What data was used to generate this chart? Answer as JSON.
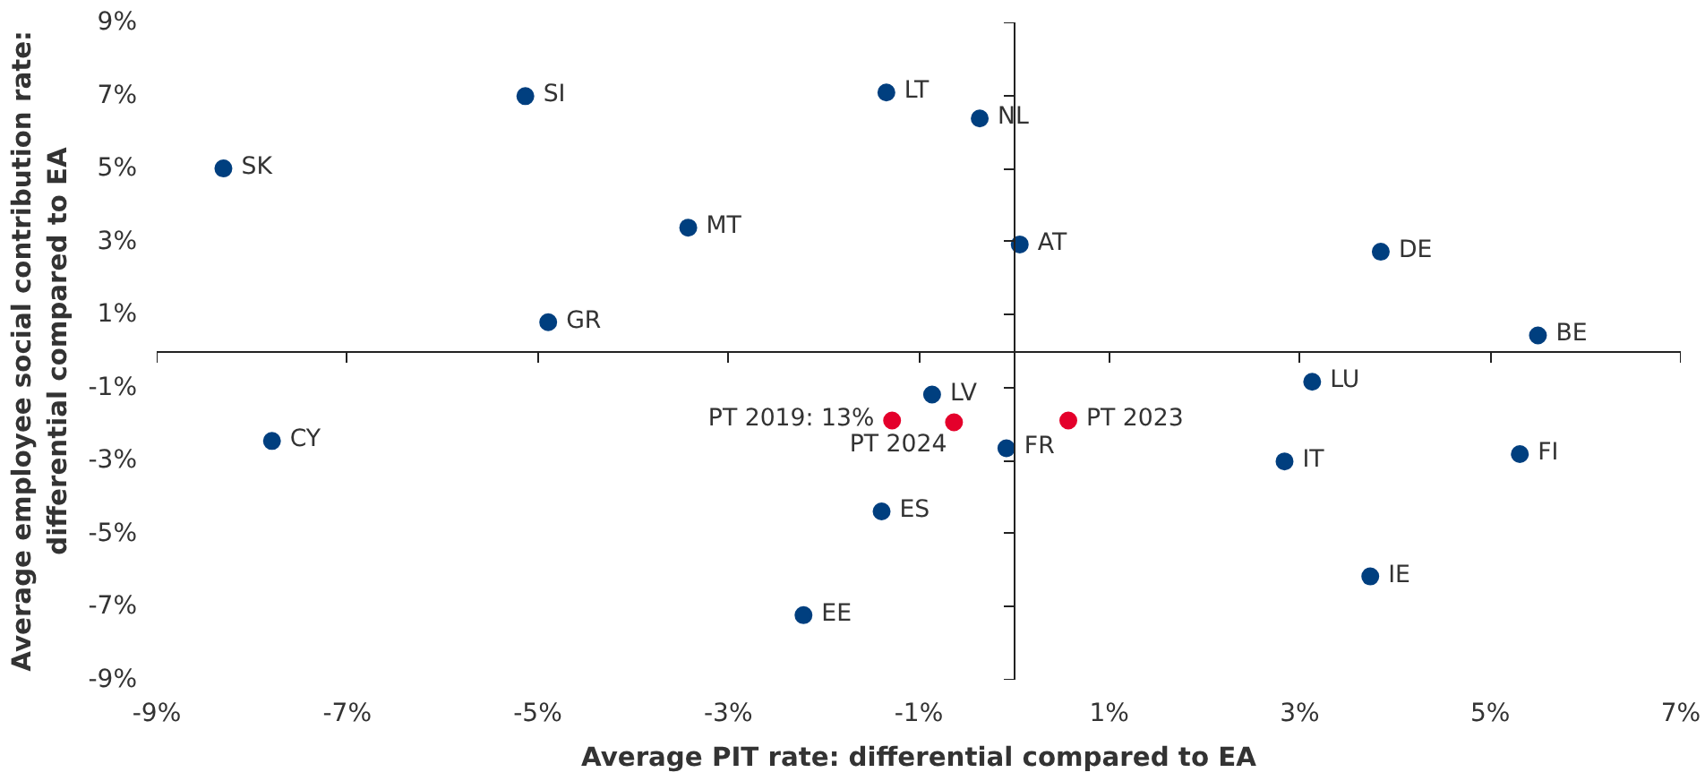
{
  "chart_data": {
    "type": "scatter",
    "xlabel": "Average PIT rate: differential compared to EA",
    "ylabel": "Average employee social contribution rate:\ndifferential compared to EA",
    "xlim": [
      -9,
      7
    ],
    "ylim": [
      -9,
      9
    ],
    "xticks": [
      {
        "value": -9,
        "label": "-9%"
      },
      {
        "value": -7,
        "label": "-7%"
      },
      {
        "value": -5,
        "label": "-5%"
      },
      {
        "value": -3,
        "label": "-3%"
      },
      {
        "value": -1,
        "label": "-1%"
      },
      {
        "value": 1,
        "label": "1%"
      },
      {
        "value": 3,
        "label": "3%"
      },
      {
        "value": 5,
        "label": "5%"
      },
      {
        "value": 7,
        "label": "7%"
      }
    ],
    "yticks": [
      {
        "value": -9,
        "label": "-9%"
      },
      {
        "value": -7,
        "label": "-7%"
      },
      {
        "value": -5,
        "label": "-5%"
      },
      {
        "value": -3,
        "label": "-3%"
      },
      {
        "value": -1,
        "label": "-1%"
      },
      {
        "value": 1,
        "label": "1%"
      },
      {
        "value": 3,
        "label": "3%"
      },
      {
        "value": 5,
        "label": "5%"
      },
      {
        "value": 7,
        "label": "7%"
      },
      {
        "value": 9,
        "label": "9%"
      }
    ],
    "grid": false,
    "marker": "circle",
    "series": [
      {
        "color": "#003f7f",
        "x": [
          -8.3,
          -5.13,
          -1.34,
          -0.36,
          -3.42,
          0.06,
          3.85,
          -4.89,
          5.5,
          3.13,
          -0.86,
          -0.08,
          -7.79,
          2.84,
          5.31,
          -1.39,
          3.74,
          -2.21
        ],
        "values": [
          5.0,
          6.98,
          7.08,
          6.37,
          3.38,
          2.92,
          2.72,
          0.79,
          0.43,
          -0.84,
          -1.19,
          -2.66,
          -2.46,
          -3.02,
          -2.82,
          -4.39,
          -6.17,
          -7.23
        ]
      },
      {
        "color": "#e4002b",
        "x": [
          -1.28,
          -0.63,
          0.57
        ],
        "values": [
          -1.9,
          -1.95,
          -1.9
        ]
      }
    ],
    "annotations": [
      {
        "text": "SK",
        "x": -8.3,
        "y": 5.0
      },
      {
        "text": "SI",
        "x": -5.13,
        "y": 6.98
      },
      {
        "text": "LT",
        "x": -1.34,
        "y": 7.08
      },
      {
        "text": "NL",
        "x": -0.36,
        "y": 6.37
      },
      {
        "text": "MT",
        "x": -3.42,
        "y": 3.38
      },
      {
        "text": "AT",
        "x": 0.06,
        "y": 2.92
      },
      {
        "text": "DE",
        "x": 3.85,
        "y": 2.72
      },
      {
        "text": "GR",
        "x": -4.89,
        "y": 0.79
      },
      {
        "text": "BE",
        "x": 5.5,
        "y": 0.43
      },
      {
        "text": "LU",
        "x": 3.13,
        "y": -0.84
      },
      {
        "text": "LV",
        "x": -0.86,
        "y": -1.19
      },
      {
        "text": "FR",
        "x": -0.08,
        "y": -2.66
      },
      {
        "text": "CY",
        "x": -7.79,
        "y": -2.46
      },
      {
        "text": "IT",
        "x": 2.84,
        "y": -3.02
      },
      {
        "text": "FI",
        "x": 5.31,
        "y": -2.82
      },
      {
        "text": "ES",
        "x": -1.39,
        "y": -4.39
      },
      {
        "text": "IE",
        "x": 3.74,
        "y": -6.17
      },
      {
        "text": "EE",
        "x": -2.21,
        "y": -7.23
      },
      {
        "text": "PT 2019: 13%",
        "x": -1.28,
        "y": -1.9
      },
      {
        "text": "PT 2024",
        "x": -0.63,
        "y": -1.95
      },
      {
        "text": "PT 2023",
        "x": 0.57,
        "y": -1.9
      }
    ]
  }
}
